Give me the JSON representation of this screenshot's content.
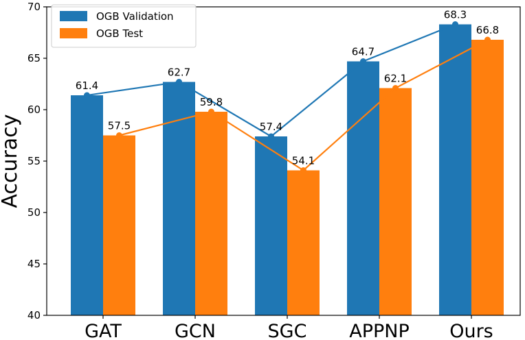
{
  "chart_data": {
    "type": "bar",
    "title": "",
    "xlabel": "",
    "ylabel": "Accuracy",
    "ylim": [
      40,
      70
    ],
    "yticks": [
      40,
      45,
      50,
      55,
      60,
      65,
      70
    ],
    "categories": [
      "GAT",
      "GCN",
      "SGC",
      "APPNP",
      "Ours"
    ],
    "series": [
      {
        "name": "OGB Validation",
        "color": "#1f77b4",
        "values": [
          61.4,
          62.7,
          57.4,
          64.7,
          68.3
        ],
        "labels": [
          "61.4",
          "62.7",
          "57.4",
          "64.7",
          "68.3"
        ],
        "line_overlay": true
      },
      {
        "name": "OGB Test",
        "color": "#ff7f0e",
        "values": [
          57.5,
          59.8,
          54.1,
          62.1,
          66.8
        ],
        "labels": [
          "57.5",
          "59.8",
          "54.1",
          "62.1",
          "66.8"
        ],
        "line_overlay": true
      }
    ],
    "legend": {
      "placement": "top-left",
      "entries": [
        "OGB Validation",
        "OGB Test"
      ]
    },
    "grid": false
  }
}
